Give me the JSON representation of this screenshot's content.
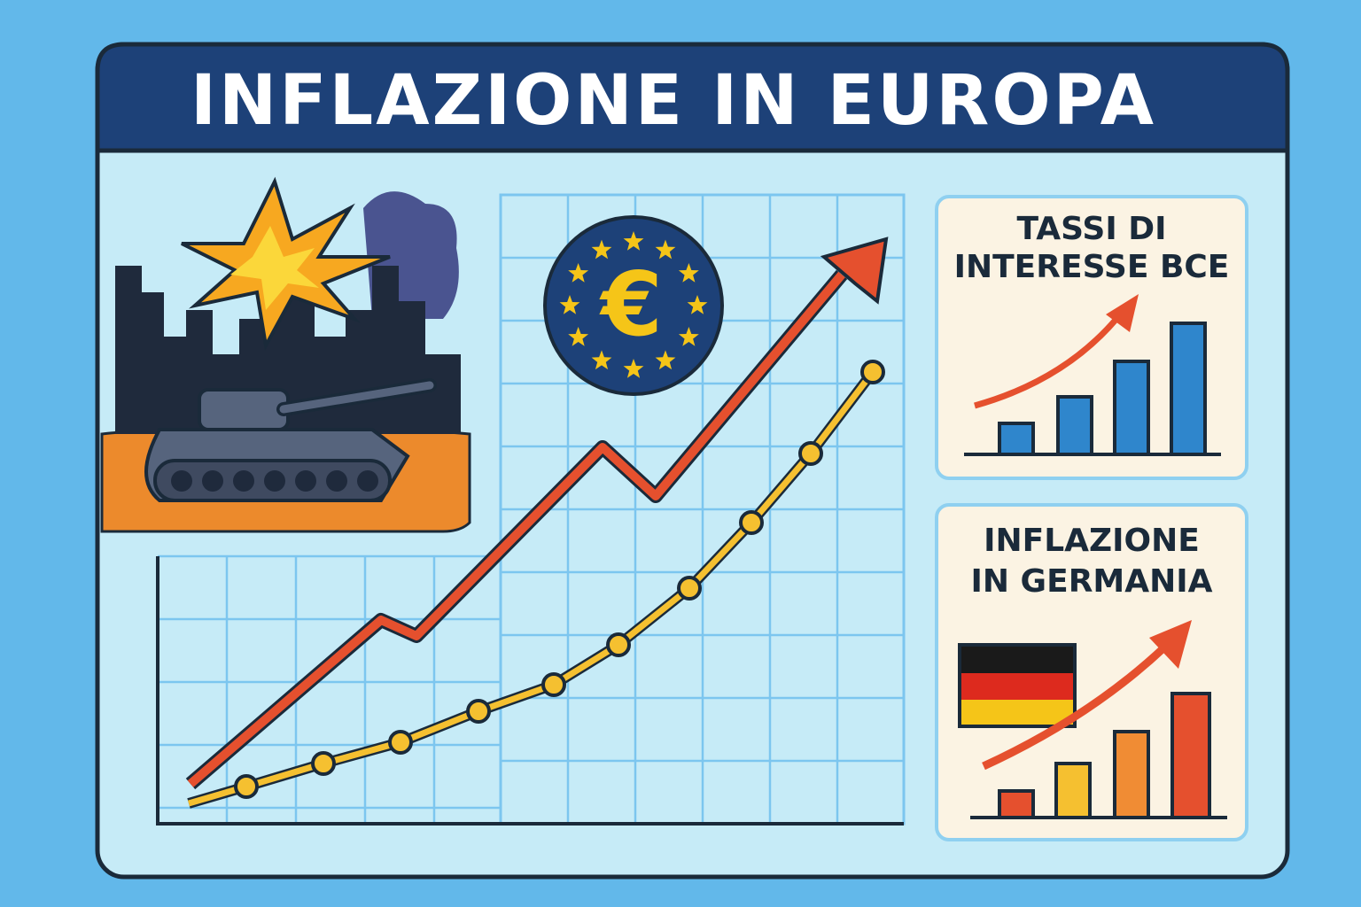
{
  "header": {
    "title": "INFLAZIONE IN EUROPA"
  },
  "emblem": {
    "symbol": "€"
  },
  "panels": [
    {
      "title_lines": [
        "TASSI DI",
        "INTERESSE BCE"
      ]
    },
    {
      "title_lines": [
        "INFLAZIONE",
        "IN GERMANIA"
      ]
    }
  ]
}
